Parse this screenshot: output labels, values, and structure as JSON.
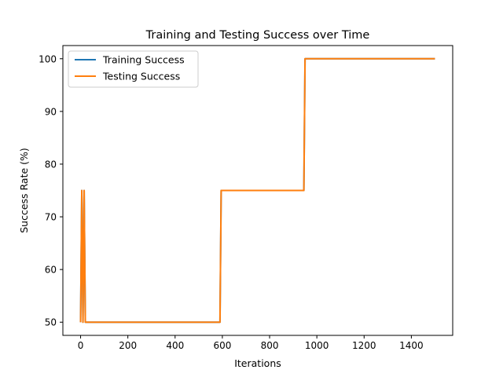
{
  "chart_data": {
    "type": "line",
    "title": "Training and Testing Success over Time",
    "xlabel": "Iterations",
    "ylabel": "Success Rate (%)",
    "xlim": [
      -75,
      1575
    ],
    "ylim": [
      47.5,
      102.5
    ],
    "xticks": [
      0,
      200,
      400,
      600,
      800,
      1000,
      1200,
      1400
    ],
    "yticks": [
      50,
      60,
      70,
      80,
      90,
      100
    ],
    "grid": false,
    "legend": "top-left",
    "series": [
      {
        "name": "Training Success",
        "color": "#1f77b4",
        "x": [
          0,
          5,
          10,
          15,
          20,
          590,
          595,
          945,
          950,
          1500
        ],
        "y": [
          50,
          75,
          50,
          75,
          50,
          50,
          75,
          75,
          100,
          100
        ]
      },
      {
        "name": "Testing Success",
        "color": "#ff7f0e",
        "x": [
          0,
          5,
          10,
          15,
          20,
          590,
          595,
          945,
          950,
          1500
        ],
        "y": [
          50,
          75,
          50,
          75,
          50,
          50,
          75,
          75,
          100,
          100
        ]
      }
    ]
  }
}
